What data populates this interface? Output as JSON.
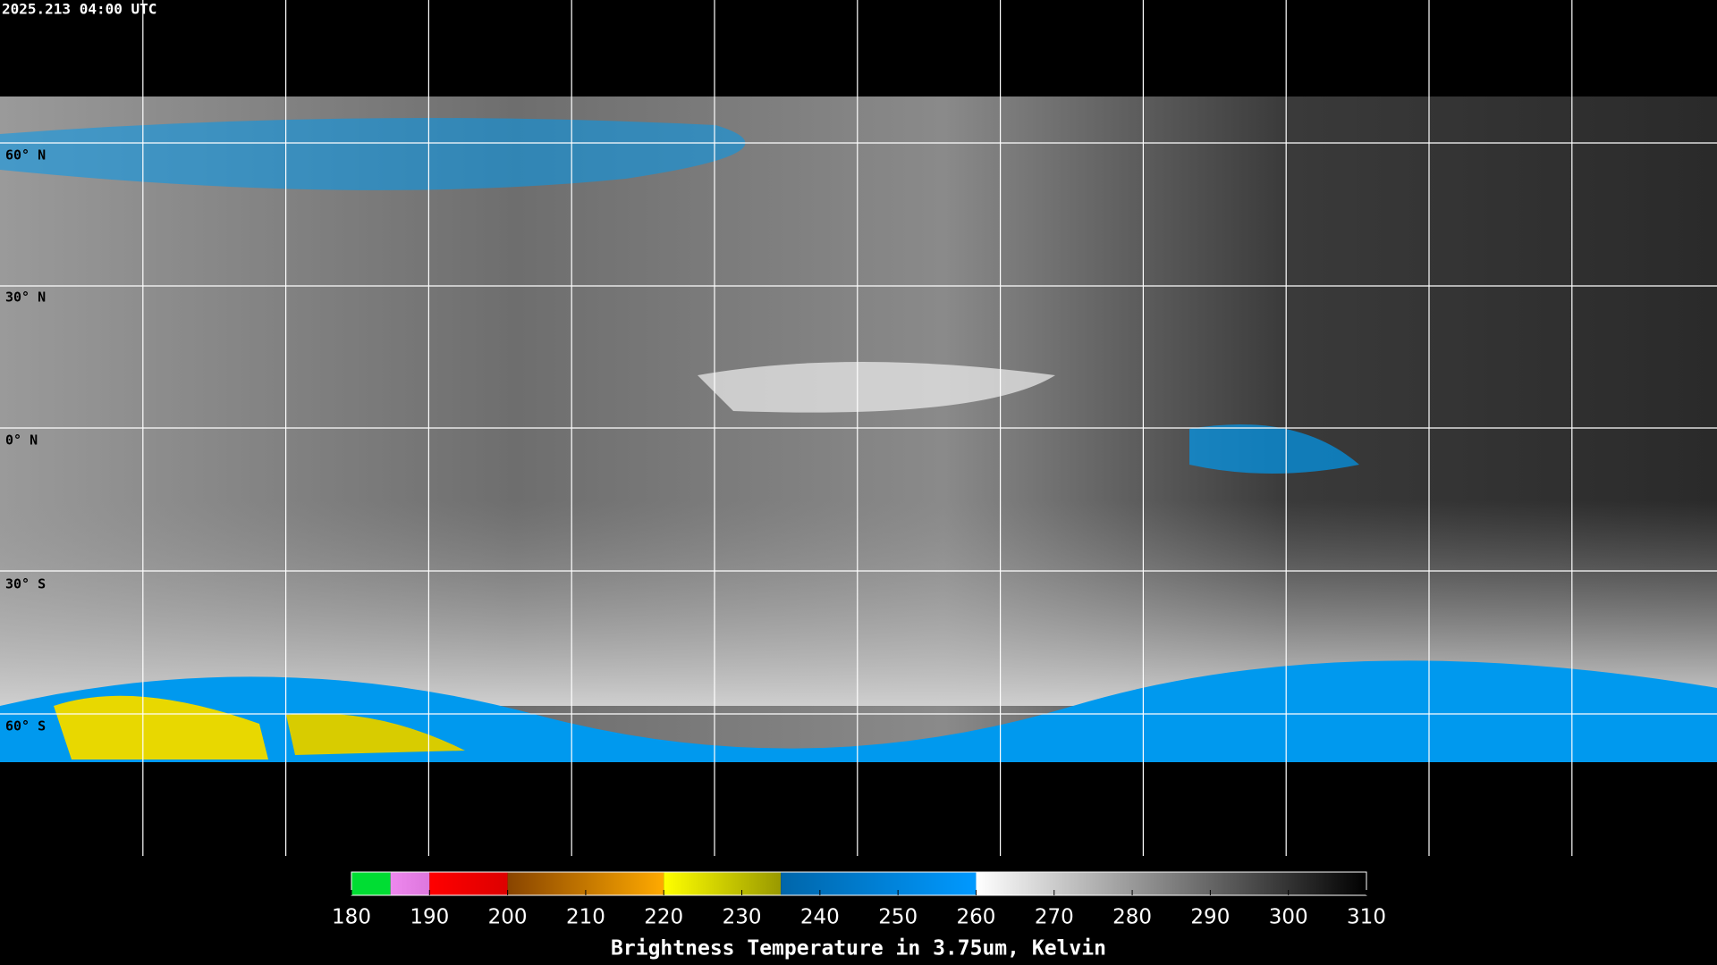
{
  "header": {
    "timestamp": "2025.213 04:00 UTC"
  },
  "map": {
    "lat_labels": [
      "60° N",
      "30° N",
      "0° N",
      "30° S",
      "60° S"
    ]
  },
  "colorbar": {
    "title": "Brightness Temperature in 3.75um, Kelvin",
    "lim": [
      180,
      310
    ],
    "ticks": [
      180,
      190,
      200,
      210,
      220,
      230,
      240,
      250,
      260,
      270,
      280,
      290,
      300,
      310
    ],
    "segments": [
      {
        "from": 180,
        "to": 185,
        "colors": [
          "#00dd33",
          "#00dd33"
        ]
      },
      {
        "from": 185,
        "to": 190,
        "colors": [
          "#ee88ee",
          "#dd77dd"
        ]
      },
      {
        "from": 190,
        "to": 200,
        "colors": [
          "#ff0000",
          "#dd0000"
        ]
      },
      {
        "from": 200,
        "to": 220,
        "colors": [
          "#884400",
          "#ffaa00"
        ]
      },
      {
        "from": 220,
        "to": 235,
        "colors": [
          "#ffff00",
          "#999900"
        ]
      },
      {
        "from": 235,
        "to": 260,
        "colors": [
          "#0066aa",
          "#0099ff"
        ]
      },
      {
        "from": 260,
        "to": 310,
        "colors": [
          "#ffffff",
          "#000000"
        ]
      }
    ]
  }
}
